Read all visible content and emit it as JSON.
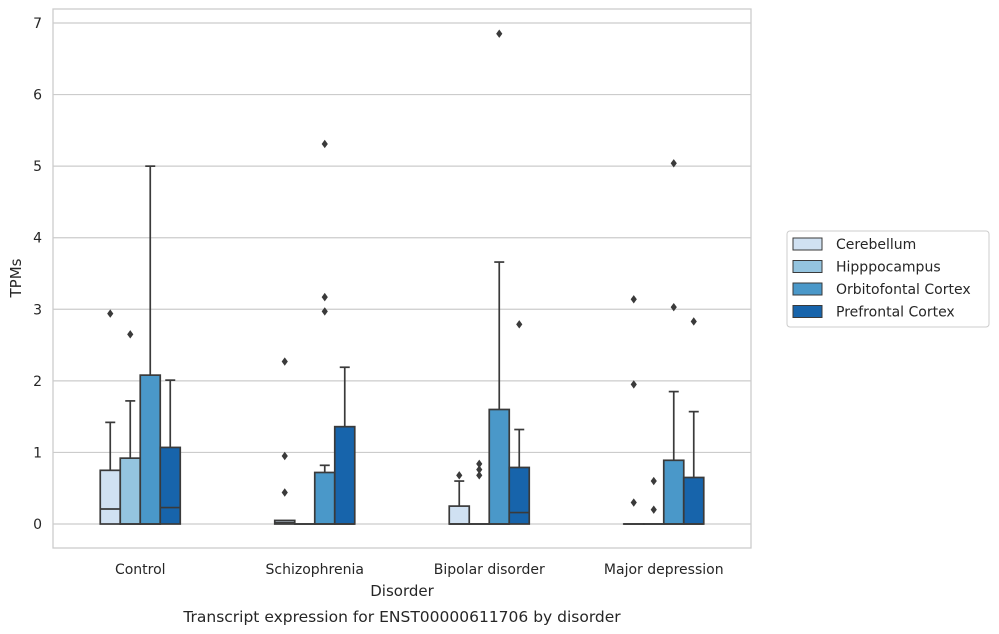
{
  "chart_data": {
    "type": "box",
    "caption": "Transcript expression for ENST00000611706 by disorder",
    "xlabel": "Disorder",
    "ylabel": "TPMs",
    "ylim": [
      -0.33,
      7.2
    ],
    "yticks": [
      "0",
      "1",
      "2",
      "3",
      "4",
      "5",
      "6",
      "7"
    ],
    "categories": [
      "Control",
      "Schizophrenia",
      "Bipolar disorder",
      "Major depression"
    ],
    "grid": true,
    "legend_position": "right",
    "series": [
      {
        "name": "Cerebellum",
        "color": "#d0e1f2",
        "boxes": [
          {
            "q1": 0,
            "median": 0.21,
            "q3": 0.75,
            "whisker_low": 0,
            "whisker_high": 1.42,
            "outliers": [
              2.94
            ]
          },
          {
            "q1": 0,
            "median": 0.02,
            "q3": 0.05,
            "whisker_low": 0,
            "whisker_high": 0.05,
            "outliers": [
              0.44,
              0.95,
              2.27
            ]
          },
          {
            "q1": 0,
            "median": 0,
            "q3": 0.25,
            "whisker_low": 0,
            "whisker_high": 0.6,
            "outliers": [
              0.68
            ]
          },
          {
            "q1": 0,
            "median": 0,
            "q3": 0,
            "whisker_low": 0,
            "whisker_high": 0,
            "outliers": [
              0.3,
              1.95,
              3.14
            ]
          }
        ]
      },
      {
        "name": "Hipppocampus",
        "color": "#94c4df",
        "boxes": [
          {
            "q1": 0,
            "median": 0,
            "q3": 0.92,
            "whisker_low": 0,
            "whisker_high": 1.72,
            "outliers": [
              2.65
            ]
          },
          {
            "q1": 0,
            "median": 0,
            "q3": 0,
            "whisker_low": 0,
            "whisker_high": 0,
            "outliers": []
          },
          {
            "q1": 0,
            "median": 0,
            "q3": 0,
            "whisker_low": 0,
            "whisker_high": 0,
            "outliers": [
              0.68,
              0.76,
              0.84
            ]
          },
          {
            "q1": 0,
            "median": 0,
            "q3": 0,
            "whisker_low": 0,
            "whisker_high": 0,
            "outliers": [
              0.2,
              0.6
            ]
          }
        ]
      },
      {
        "name": "Orbitofontal Cortex",
        "color": "#4a98c9",
        "boxes": [
          {
            "q1": 0,
            "median": 0,
            "q3": 2.08,
            "whisker_low": 0,
            "whisker_high": 5.0,
            "outliers": []
          },
          {
            "q1": 0,
            "median": 0,
            "q3": 0.72,
            "whisker_low": 0,
            "whisker_high": 0.82,
            "outliers": [
              2.97,
              3.17,
              5.31
            ]
          },
          {
            "q1": 0,
            "median": 0,
            "q3": 1.6,
            "whisker_low": 0,
            "whisker_high": 3.66,
            "outliers": [
              6.85
            ]
          },
          {
            "q1": 0,
            "median": 0,
            "q3": 0.89,
            "whisker_low": 0,
            "whisker_high": 1.85,
            "outliers": [
              3.03,
              5.04
            ]
          }
        ]
      },
      {
        "name": "Prefrontal Cortex",
        "color": "#1764ab",
        "boxes": [
          {
            "q1": 0,
            "median": 0.23,
            "q3": 1.07,
            "whisker_low": 0,
            "whisker_high": 2.01,
            "outliers": []
          },
          {
            "q1": 0,
            "median": 0,
            "q3": 1.36,
            "whisker_low": 0,
            "whisker_high": 2.19,
            "outliers": []
          },
          {
            "q1": 0,
            "median": 0.16,
            "q3": 0.79,
            "whisker_low": 0,
            "whisker_high": 1.32,
            "outliers": [
              2.79
            ]
          },
          {
            "q1": 0,
            "median": 0,
            "q3": 0.65,
            "whisker_low": 0,
            "whisker_high": 1.57,
            "outliers": [
              2.83
            ]
          }
        ]
      }
    ]
  }
}
